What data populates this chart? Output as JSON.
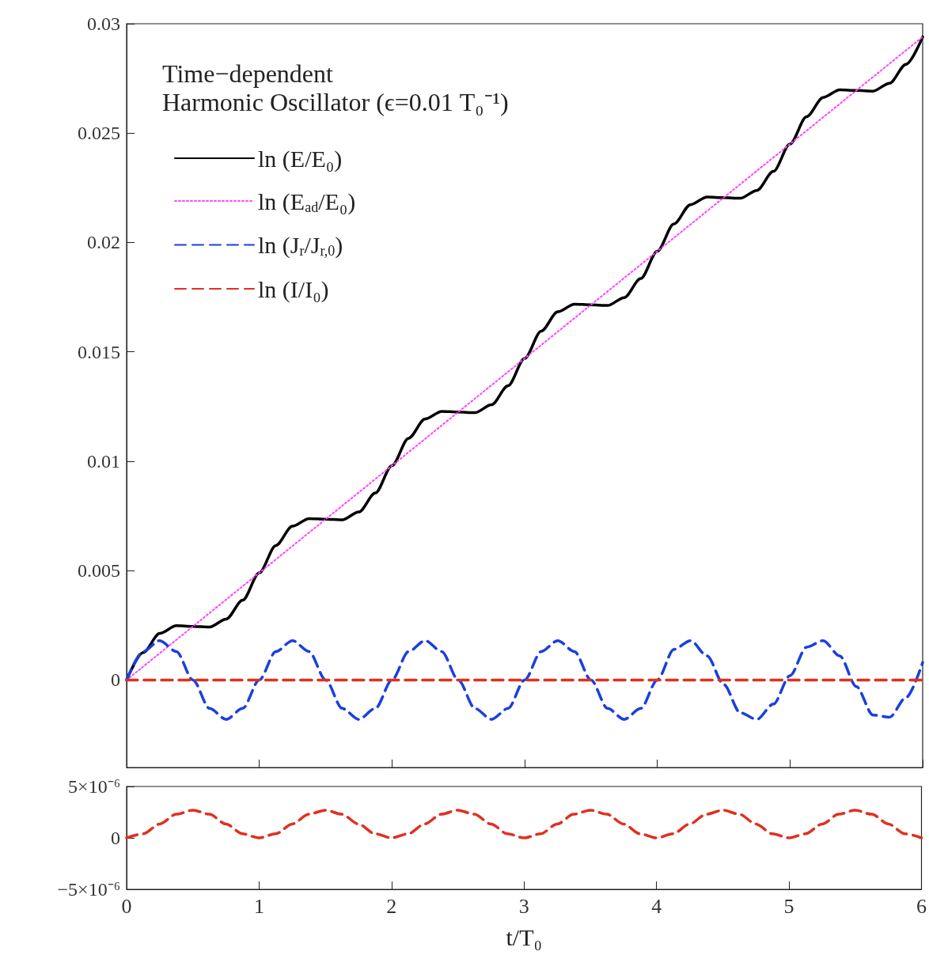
{
  "chart_data": [
    {
      "type": "line",
      "title": "Time−dependent\nHarmonic Oscillator (ϵ=0.01 T₀⁻¹)",
      "xlim": [
        0,
        6
      ],
      "ylim": [
        -0.004,
        0.03
      ],
      "xticks": [
        0,
        1,
        2,
        3,
        4,
        5,
        6
      ],
      "yticks": [
        0,
        0.005,
        0.01,
        0.015,
        0.02,
        0.025,
        0.03
      ],
      "tick_labels": "y",
      "legend": "top left",
      "grid": false,
      "marker": "none",
      "series": [
        {
          "name": "ln (E/E₀)",
          "color": "#000000",
          "line_style": "solid",
          "x": [
            0,
            0.125,
            0.25,
            0.375,
            0.5,
            0.625,
            0.75,
            0.875,
            1,
            1.125,
            1.25,
            1.375,
            1.5,
            1.625,
            1.75,
            1.875,
            2,
            2.125,
            2.25,
            2.375,
            2.5,
            2.625,
            2.75,
            2.875,
            3,
            3.125,
            3.25,
            3.375,
            3.5,
            3.625,
            3.75,
            3.875,
            4,
            4.125,
            4.25,
            4.375,
            4.5,
            4.625,
            4.75,
            4.875,
            5,
            5.125,
            5.25,
            5.375,
            5.5,
            5.625,
            5.75,
            5.875,
            6
          ],
          "values": [
            0,
            0.00125,
            0.00213,
            0.00248,
            0.00245,
            0.00242,
            0.00278,
            0.00365,
            0.0049,
            0.00615,
            0.00703,
            0.00738,
            0.00735,
            0.00732,
            0.00768,
            0.00855,
            0.0098,
            0.01105,
            0.01193,
            0.01228,
            0.01225,
            0.01222,
            0.01258,
            0.01345,
            0.0147,
            0.01595,
            0.01683,
            0.01718,
            0.01715,
            0.01712,
            0.01748,
            0.01835,
            0.0196,
            0.02085,
            0.02173,
            0.02208,
            0.02205,
            0.02202,
            0.02238,
            0.02325,
            0.0245,
            0.02575,
            0.02663,
            0.02698,
            0.02695,
            0.02692,
            0.02728,
            0.02815,
            0.0294
          ]
        },
        {
          "name": "ln (E$_{ad}$/E₀)",
          "color": "#ff44ff",
          "line_style": "dotted",
          "x": [
            0,
            6
          ],
          "values": [
            0,
            0.0294
          ]
        },
        {
          "name": "ln (J$_{r}$/J$_{r,0}$)",
          "color": "#1a3fe0",
          "line_style": "dashed",
          "x": [
            0,
            0.125,
            0.25,
            0.375,
            0.5,
            0.625,
            0.75,
            0.875,
            1,
            1.125,
            1.25,
            1.375,
            1.5,
            1.625,
            1.75,
            1.875,
            2,
            2.125,
            2.25,
            2.375,
            2.5,
            2.625,
            2.75,
            2.875,
            3,
            3.125,
            3.25,
            3.375,
            3.5,
            3.625,
            3.75,
            3.875,
            4,
            4.125,
            4.25,
            4.375,
            4.5,
            4.625,
            4.75,
            4.875,
            5,
            5.125,
            5.25,
            5.375,
            5.5,
            5.625,
            5.75,
            5.875,
            6
          ],
          "values": [
            0,
            0.0013,
            0.0018,
            0.0013,
            0,
            -0.0013,
            -0.0018,
            -0.0013,
            0,
            0.0013,
            0.0018,
            0.0013,
            0,
            -0.0013,
            -0.0018,
            -0.0013,
            0,
            0.0013,
            0.0018,
            0.0013,
            0,
            -0.0013,
            -0.0018,
            -0.0013,
            0,
            0.0013,
            0.0018,
            0.0013,
            0,
            -0.0013,
            -0.0018,
            -0.0013,
            0,
            0.0014,
            0.0018,
            0.0011,
            -0.0002,
            -0.0015,
            -0.0018,
            -0.0011,
            0.0002,
            0.0015,
            0.0018,
            0.0011,
            -0.0003,
            -0.0016,
            -0.0017,
            -0.0008,
            0.0008
          ]
        },
        {
          "name": "ln (I/I₀)",
          "color": "#e03020",
          "line_style": "dashed",
          "x": [
            0,
            6
          ],
          "values": [
            0,
            0
          ]
        }
      ]
    },
    {
      "type": "line",
      "xlabel": "t/T₀",
      "xlim": [
        0,
        6
      ],
      "ylim": [
        -5e-06,
        5e-06
      ],
      "xticks": [
        0,
        1,
        2,
        3,
        4,
        5,
        6
      ],
      "yticks": [
        {
          "value": 5e-06,
          "label": "5×10⁻⁶"
        },
        0,
        {
          "value": -5e-06,
          "label": "−5×10⁻⁶"
        }
      ],
      "grid": false,
      "marker": "none",
      "series": [
        {
          "color": "#e03020",
          "line_style": "dashed",
          "x": [
            0,
            0.125,
            0.25,
            0.375,
            0.5,
            0.625,
            0.75,
            0.875,
            1,
            1.125,
            1.25,
            1.375,
            1.5,
            1.625,
            1.75,
            1.875,
            2,
            2.125,
            2.25,
            2.375,
            2.5,
            2.625,
            2.75,
            2.875,
            3,
            3.125,
            3.25,
            3.375,
            3.5,
            3.625,
            3.75,
            3.875,
            4,
            4.125,
            4.25,
            4.375,
            4.5,
            4.625,
            4.75,
            4.875,
            5,
            5.125,
            5.25,
            5.375,
            5.5,
            5.625,
            5.75,
            5.875,
            6
          ],
          "values": [
            0,
            4e-07,
            1.35e-06,
            2.3e-06,
            2.7e-06,
            2.3e-06,
            1.35e-06,
            4e-07,
            0,
            4e-07,
            1.35e-06,
            2.3e-06,
            2.7e-06,
            2.3e-06,
            1.35e-06,
            4e-07,
            0,
            4e-07,
            1.35e-06,
            2.3e-06,
            2.7e-06,
            2.3e-06,
            1.35e-06,
            4e-07,
            0,
            4e-07,
            1.35e-06,
            2.3e-06,
            2.7e-06,
            2.3e-06,
            1.35e-06,
            4e-07,
            0,
            4e-07,
            1.35e-06,
            2.3e-06,
            2.7e-06,
            2.3e-06,
            1.35e-06,
            4e-07,
            0,
            4e-07,
            1.35e-06,
            2.3e-06,
            2.7e-06,
            2.3e-06,
            1.35e-06,
            4e-07,
            0
          ]
        }
      ]
    }
  ]
}
